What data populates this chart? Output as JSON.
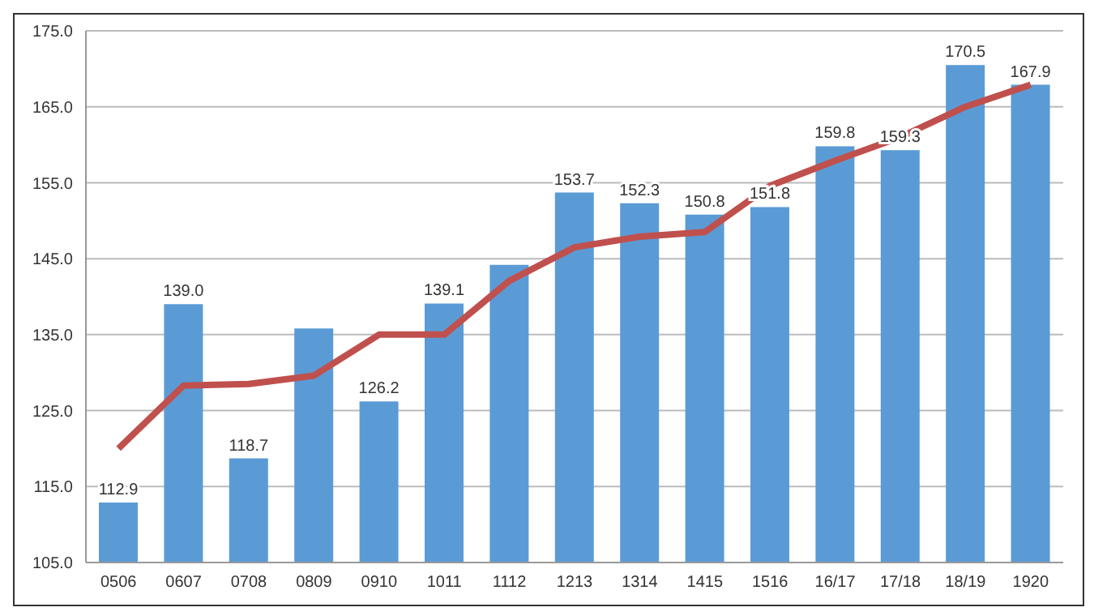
{
  "chart_data": {
    "type": "bar",
    "categories": [
      "0506",
      "0607",
      "0708",
      "0809",
      "0910",
      "1011",
      "1112",
      "1213",
      "1314",
      "1415",
      "1516",
      "16/17",
      "17/18",
      "18/19",
      "1920"
    ],
    "series": [
      {
        "color": "#5b9bd5",
        "values": [
          112.9,
          139.0,
          118.7,
          135.8,
          126.2,
          139.1,
          144.2,
          153.7,
          152.3,
          150.8,
          151.8,
          159.8,
          159.3,
          170.5,
          167.9
        ],
        "value_labels": [
          "112.9",
          "139.0",
          "118.7",
          null,
          "126.2",
          "139.1",
          null,
          "153.7",
          "152.3",
          "150.8",
          "151.8",
          "159.8",
          "159.3",
          "170.5",
          "167.9"
        ]
      },
      {
        "type": "line",
        "color": "#c0504d",
        "values": [
          120.0,
          128.3,
          128.5,
          129.6,
          135.0,
          135.0,
          142.1,
          146.5,
          147.9,
          148.5,
          154.6,
          157.9,
          161.0,
          165.0,
          167.9
        ]
      }
    ],
    "ylim": [
      105,
      175
    ],
    "yticks": [
      {
        "value": 105,
        "label": "105.0"
      },
      {
        "value": 115,
        "label": "115.0"
      },
      {
        "value": 125,
        "label": "125.0"
      },
      {
        "value": 135,
        "label": "135.0"
      },
      {
        "value": 145,
        "label": "145.0"
      },
      {
        "value": 155,
        "label": "155.0"
      },
      {
        "value": 165,
        "label": "165.0"
      },
      {
        "value": 175,
        "label": "175.0"
      }
    ],
    "grid": "y",
    "legend": false,
    "marker": "none",
    "line_style": "solid"
  }
}
